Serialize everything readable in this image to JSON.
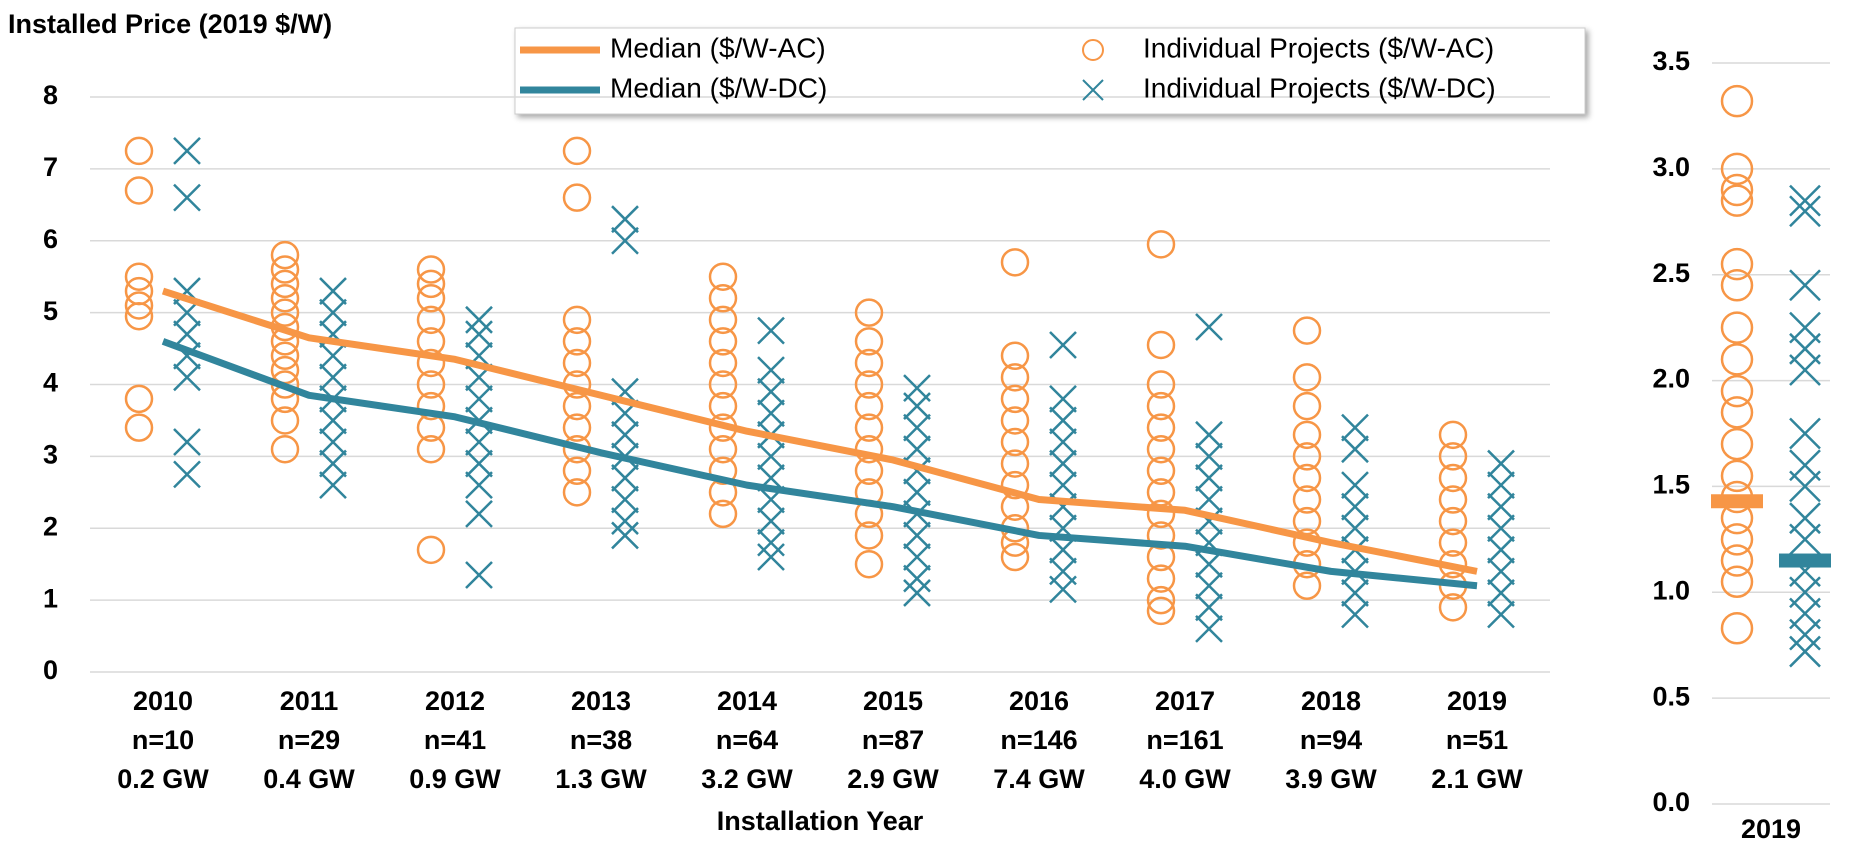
{
  "chart_data": [
    {
      "type": "line-scatter",
      "title": "Installed Price (2019 $/W)",
      "x_label": "Installation Year",
      "categories": [
        "2010",
        "2011",
        "2012",
        "2013",
        "2014",
        "2015",
        "2016",
        "2017",
        "2018",
        "2019"
      ],
      "category_counts": [
        "n=10",
        "n=29",
        "n=41",
        "n=38",
        "n=64",
        "n=87",
        "n=146",
        "n=161",
        "n=94",
        "n=51"
      ],
      "category_capacity": [
        "0.2 GW",
        "0.4 GW",
        "0.9 GW",
        "1.3 GW",
        "3.2 GW",
        "2.9 GW",
        "7.4 GW",
        "4.0 GW",
        "3.9 GW",
        "2.1 GW"
      ],
      "ylim": [
        0,
        8
      ],
      "yticks": [
        0,
        1,
        2,
        3,
        4,
        5,
        6,
        7,
        8
      ],
      "grid": true,
      "legend": "upper center",
      "series": [
        {
          "name": "Median ($/W-AC)",
          "color": "#f79646",
          "marker": "line",
          "offset": "center",
          "values": [
            5.3,
            4.65,
            4.35,
            3.85,
            3.35,
            2.95,
            2.4,
            2.25,
            1.8,
            1.4
          ]
        },
        {
          "name": "Median ($/W-DC)",
          "color": "#31859c",
          "marker": "line",
          "offset": "center",
          "values": [
            4.6,
            3.85,
            3.55,
            3.05,
            2.6,
            2.3,
            1.9,
            1.75,
            1.4,
            1.2
          ]
        },
        {
          "name": "Individual Projects ($/W-AC)",
          "color": "#f79646",
          "marker": "circle",
          "offset": "left",
          "values": [
            [
              7.25,
              6.7,
              5.5,
              5.3,
              5.1,
              4.95,
              3.8,
              3.4
            ],
            [
              5.8,
              5.6,
              5.4,
              5.2,
              5.0,
              4.8,
              4.6,
              4.4,
              4.2,
              4.0,
              3.8,
              3.5,
              3.1
            ],
            [
              5.6,
              5.4,
              5.2,
              4.9,
              4.6,
              4.3,
              4.0,
              3.7,
              3.4,
              3.1,
              1.7
            ],
            [
              7.25,
              6.6,
              4.9,
              4.6,
              4.3,
              4.0,
              3.7,
              3.4,
              3.1,
              2.8,
              2.5
            ],
            [
              5.5,
              5.2,
              4.9,
              4.6,
              4.3,
              4.0,
              3.7,
              3.4,
              3.1,
              2.8,
              2.5,
              2.2
            ],
            [
              5.0,
              4.6,
              4.3,
              4.0,
              3.7,
              3.4,
              3.1,
              2.8,
              2.5,
              2.2,
              1.9,
              1.5
            ],
            [
              5.7,
              4.4,
              4.1,
              3.8,
              3.5,
              3.2,
              2.9,
              2.6,
              2.3,
              2.0,
              1.8,
              1.6
            ],
            [
              5.95,
              4.55,
              4.0,
              3.7,
              3.4,
              3.1,
              2.8,
              2.5,
              2.2,
              1.9,
              1.6,
              1.3,
              1.0,
              0.85
            ],
            [
              4.75,
              4.1,
              3.7,
              3.3,
              3.0,
              2.7,
              2.4,
              2.1,
              1.8,
              1.5,
              1.2
            ],
            [
              3.3,
              3.0,
              2.7,
              2.4,
              2.1,
              1.8,
              1.5,
              1.2,
              0.9
            ]
          ]
        },
        {
          "name": "Individual Projects ($/W-DC)",
          "color": "#31859c",
          "marker": "x",
          "offset": "right",
          "values": [
            [
              7.25,
              6.6,
              5.3,
              5.0,
              4.7,
              4.4,
              4.1,
              3.2,
              2.75
            ],
            [
              5.3,
              5.0,
              4.7,
              4.4,
              4.1,
              3.8,
              3.5,
              3.2,
              2.9,
              2.6
            ],
            [
              4.9,
              4.7,
              4.4,
              4.1,
              3.8,
              3.5,
              3.2,
              2.9,
              2.6,
              2.2,
              1.35
            ],
            [
              6.3,
              6.0,
              3.9,
              3.6,
              3.3,
              3.0,
              2.7,
              2.4,
              2.1,
              1.9
            ],
            [
              4.75,
              4.2,
              3.9,
              3.6,
              3.3,
              3.0,
              2.7,
              2.4,
              2.1,
              1.8,
              1.6
            ],
            [
              3.95,
              3.7,
              3.4,
              3.1,
              2.8,
              2.5,
              2.2,
              1.9,
              1.6,
              1.3,
              1.1
            ],
            [
              4.55,
              3.8,
              3.5,
              3.2,
              2.9,
              2.6,
              2.3,
              2.0,
              1.7,
              1.4,
              1.15
            ],
            [
              4.8,
              3.3,
              3.0,
              2.7,
              2.4,
              2.1,
              1.8,
              1.5,
              1.2,
              0.9,
              0.6
            ],
            [
              3.4,
              3.1,
              2.6,
              2.3,
              2.0,
              1.7,
              1.4,
              1.1,
              0.8
            ],
            [
              2.9,
              2.6,
              2.3,
              2.0,
              1.7,
              1.4,
              1.1,
              0.8
            ]
          ]
        }
      ]
    },
    {
      "type": "line-scatter",
      "categories": [
        "2019"
      ],
      "ylim": [
        0,
        3.5
      ],
      "yticks": [
        {
          "value": 0,
          "label": "0.0"
        },
        0.5,
        {
          "value": 1,
          "label": "1.0"
        },
        1.5,
        {
          "value": 2,
          "label": "2.0"
        },
        2.5,
        {
          "value": 3,
          "label": "3.0"
        },
        3.5
      ],
      "grid": true,
      "series": [
        {
          "color": "#f79646",
          "marker": "bar",
          "offset": "left",
          "values": [
            1.43
          ]
        },
        {
          "color": "#31859c",
          "marker": "bar",
          "offset": "right",
          "values": [
            1.15
          ]
        },
        {
          "color": "#f79646",
          "marker": "circle",
          "offset": "left",
          "values": [
            [
              3.32,
              3.0,
              2.9,
              2.85,
              2.55,
              2.45,
              2.25,
              2.1,
              1.95,
              1.85,
              1.7,
              1.55,
              1.45,
              1.35,
              1.25,
              1.15,
              1.05,
              0.83
            ]
          ]
        },
        {
          "color": "#31859c",
          "marker": "x",
          "offset": "right",
          "values": [
            [
              2.85,
              2.8,
              2.45,
              2.25,
              2.15,
              2.05,
              1.75,
              1.6,
              1.5,
              1.35,
              1.25,
              1.1,
              1.0,
              0.9,
              0.8,
              0.72
            ]
          ]
        }
      ]
    }
  ]
}
